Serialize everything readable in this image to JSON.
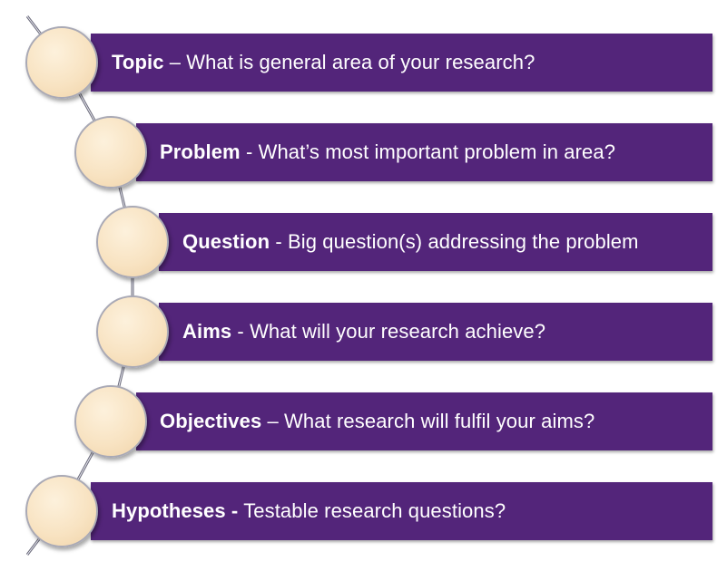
{
  "steps": [
    {
      "term": "Topic",
      "sep": " – ",
      "desc": "What is general area of your research?"
    },
    {
      "term": "Problem",
      "sep": " - ",
      "desc": "What’s most important problem in area?"
    },
    {
      "term": "Question",
      "sep": " - ",
      "desc": "Big question(s) addressing the problem"
    },
    {
      "term": "Aims",
      "sep": " - ",
      "desc": "What will your research achieve?"
    },
    {
      "term": "Objectives",
      "sep": " – ",
      "desc": "What research will fulfil your aims?"
    },
    {
      "term": "Hypotheses -",
      "sep": " ",
      "desc": "Testable research questions?"
    }
  ],
  "colors": {
    "bar": "#53257a",
    "circle": "#f8e3c2",
    "text": "#ffffff"
  }
}
